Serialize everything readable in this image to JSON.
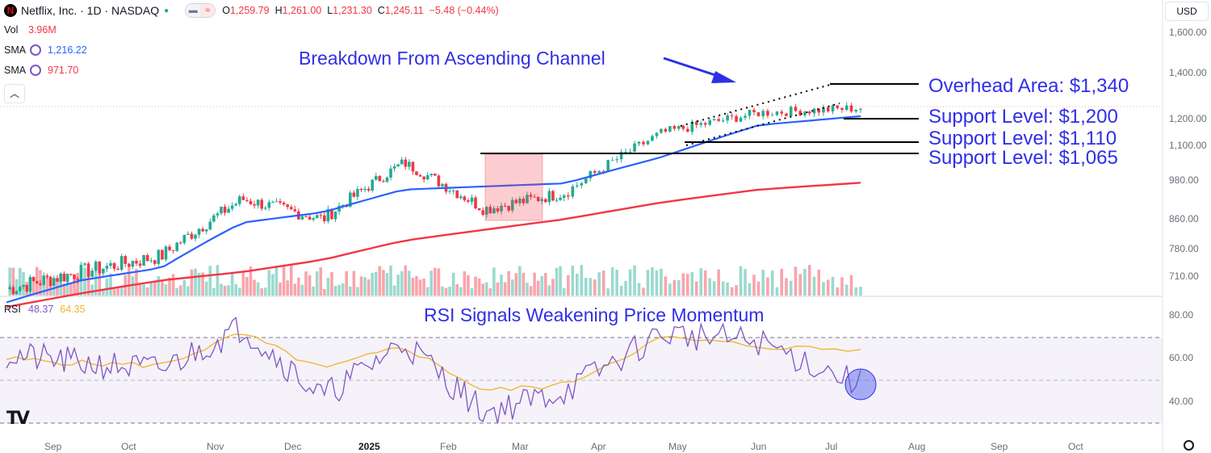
{
  "header": {
    "symbol": "Netflix, Inc. · 1D · NASDAQ",
    "open_label": "O",
    "open": "1,259.79",
    "high_label": "H",
    "high": "1,261.00",
    "low_label": "L",
    "low": "1,231.30",
    "close_label": "C",
    "close": "1,245.11",
    "change": "−5.48 (−0.44%)",
    "currency": "USD"
  },
  "indicators": {
    "vol_label": "Vol",
    "vol_value": "3.96M",
    "sma1_label": "SMA",
    "sma1_value": "1,216.22",
    "sma2_label": "SMA",
    "sma2_value": "971.70",
    "rsi_label": "RSI",
    "rsi_value": "48.37",
    "rsi_ma_value": "64.35"
  },
  "colors": {
    "up": "#22ab94",
    "down": "#f23645",
    "sma50": "#2962ff",
    "sma200": "#f23645",
    "rsi": "#7e57c2",
    "rsi_ma": "#f0b429",
    "annotation": "#2f2fe6"
  },
  "chart_data": [
    {
      "type": "line",
      "title": "",
      "price_axis_ticks": [
        "1,600.00",
        "1,400.00",
        "1,200.00",
        "1,100.00",
        "980.00",
        "860.00",
        "780.00",
        "710.00"
      ],
      "time_axis_labels": [
        "Sep",
        "Oct",
        "Nov",
        "Dec",
        "2025",
        "Feb",
        "Mar",
        "Apr",
        "May",
        "Jun",
        "Jul",
        "Aug",
        "Sep",
        "Oct"
      ],
      "x": [
        "Sep",
        "Oct",
        "Nov",
        "Dec",
        "2025",
        "Feb",
        "Mar",
        "Apr",
        "May",
        "Jun",
        "Jul"
      ],
      "series": [
        {
          "name": "Close",
          "values": [
            680,
            720,
            760,
            920,
            860,
            1040,
            890,
            940,
            1150,
            1230,
            1250
          ]
        },
        {
          "name": "SMA",
          "values": [
            650,
            700,
            730,
            850,
            880,
            950,
            960,
            970,
            1060,
            1180,
            1216
          ]
        },
        {
          "name": "SMA",
          "values": [
            640,
            670,
            700,
            720,
            750,
            800,
            830,
            860,
            910,
            950,
            972
          ]
        }
      ],
      "annotations": {
        "channel": "Breakdown From Ascending Channel",
        "levels": [
          {
            "label": "Overhead Area: $1,340",
            "price": 1340
          },
          {
            "label": "Support Level: $1,200",
            "price": 1200
          },
          {
            "label": "Support Level: $1,110",
            "price": 1110
          },
          {
            "label": "Support Level: $1,065",
            "price": 1065
          }
        ]
      }
    },
    {
      "type": "line",
      "title": "RSI Signals Weakening Price Momentum",
      "axis_ticks": [
        "80.00",
        "60.00",
        "40.00"
      ],
      "ylim": [
        30,
        80
      ],
      "x": [
        "Sep",
        "Oct",
        "Nov",
        "Dec",
        "2025",
        "Feb",
        "Mar",
        "Apr",
        "May",
        "Jun",
        "Jul"
      ],
      "series": [
        {
          "name": "RSI",
          "values": [
            62,
            58,
            55,
            75,
            42,
            68,
            35,
            45,
            72,
            68,
            48
          ]
        },
        {
          "name": "RSI-based MA",
          "values": [
            60,
            58,
            57,
            72,
            55,
            66,
            45,
            48,
            70,
            66,
            64
          ]
        }
      ]
    }
  ]
}
